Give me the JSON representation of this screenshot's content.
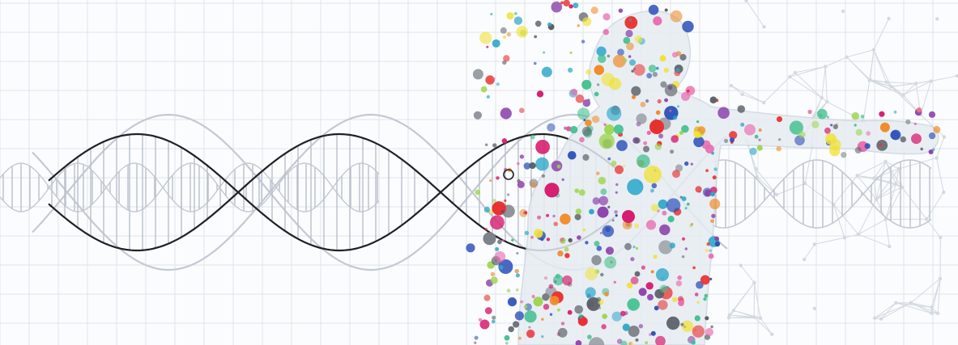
{
  "illustration": {
    "subject": "dna-helix-and-human-figure",
    "colors": {
      "background": "#fbfcfd",
      "grid": "#dfe4ea",
      "helix_dark": "#1d2127",
      "helix_light": "#c3c9d3",
      "rung": "#b9c0ca",
      "figure_fill": "#e6ecf2",
      "figure_edge": "#cdd6e0",
      "mesh": "#d3d9e1",
      "particles": [
        "#e8312f",
        "#d71d6f",
        "#f0e13a",
        "#9bd44a",
        "#2ea7c9",
        "#8e44ad",
        "#f08c2a",
        "#5a5f66",
        "#3fbf8e",
        "#2b4fb8",
        "#e86bb0",
        "#7b8088"
      ]
    }
  }
}
